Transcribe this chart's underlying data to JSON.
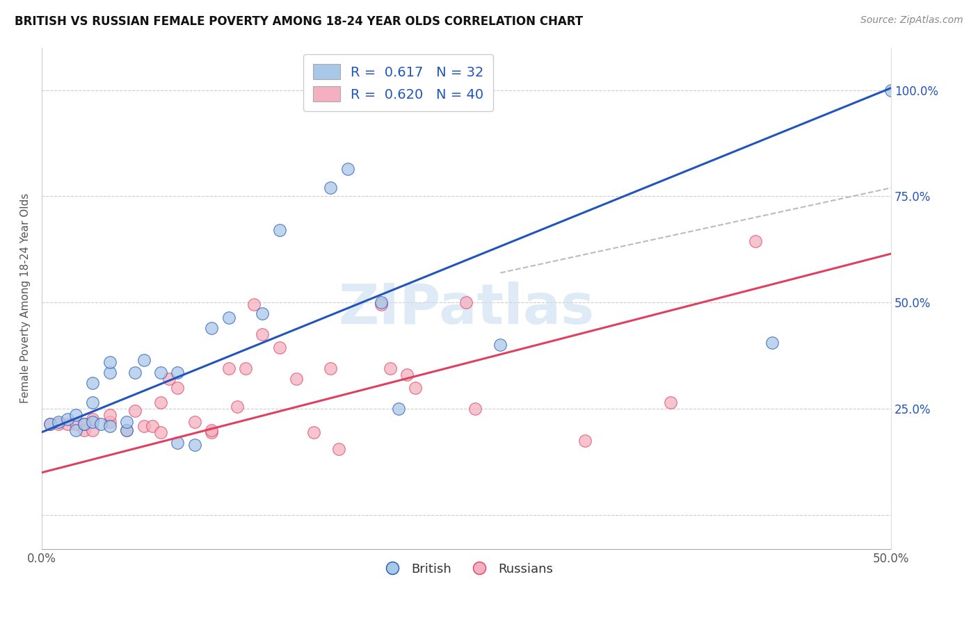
{
  "title": "BRITISH VS RUSSIAN FEMALE POVERTY AMONG 18-24 YEAR OLDS CORRELATION CHART",
  "source": "Source: ZipAtlas.com",
  "ylabel": "Female Poverty Among 18-24 Year Olds",
  "xlim": [
    0.0,
    0.5
  ],
  "ylim": [
    -0.08,
    1.1
  ],
  "xtick_pos": [
    0.0,
    0.1,
    0.2,
    0.3,
    0.4,
    0.5
  ],
  "xtick_labels": [
    "0.0%",
    "",
    "",
    "",
    "",
    "50.0%"
  ],
  "ytick_positions": [
    0.0,
    0.25,
    0.5,
    0.75,
    1.0
  ],
  "ytick_labels": [
    "",
    "25.0%",
    "50.0%",
    "75.0%",
    "100.0%"
  ],
  "british_color": "#a8c8e8",
  "russian_color": "#f4b0c0",
  "british_line_color": "#2255bb",
  "russian_line_color": "#e04060",
  "watermark_color": "#c8dff0",
  "british_R": "0.617",
  "british_N": "32",
  "russian_R": "0.620",
  "russian_N": "40",
  "british_scatter_x": [
    0.005,
    0.01,
    0.015,
    0.02,
    0.02,
    0.025,
    0.03,
    0.03,
    0.03,
    0.035,
    0.04,
    0.04,
    0.04,
    0.05,
    0.05,
    0.055,
    0.06,
    0.07,
    0.08,
    0.08,
    0.09,
    0.1,
    0.11,
    0.13,
    0.14,
    0.17,
    0.18,
    0.2,
    0.21,
    0.27,
    0.43,
    0.5
  ],
  "british_scatter_y": [
    0.215,
    0.22,
    0.225,
    0.235,
    0.2,
    0.215,
    0.22,
    0.265,
    0.31,
    0.215,
    0.21,
    0.335,
    0.36,
    0.2,
    0.22,
    0.335,
    0.365,
    0.335,
    0.335,
    0.17,
    0.165,
    0.44,
    0.465,
    0.475,
    0.67,
    0.77,
    0.815,
    0.5,
    0.25,
    0.4,
    0.405,
    1.0
  ],
  "russian_scatter_x": [
    0.005,
    0.01,
    0.015,
    0.02,
    0.025,
    0.025,
    0.03,
    0.03,
    0.04,
    0.04,
    0.05,
    0.055,
    0.06,
    0.065,
    0.07,
    0.07,
    0.075,
    0.08,
    0.09,
    0.1,
    0.1,
    0.11,
    0.115,
    0.12,
    0.125,
    0.13,
    0.14,
    0.15,
    0.16,
    0.17,
    0.175,
    0.2,
    0.205,
    0.215,
    0.22,
    0.25,
    0.255,
    0.32,
    0.37,
    0.42
  ],
  "russian_scatter_y": [
    0.215,
    0.215,
    0.215,
    0.215,
    0.2,
    0.215,
    0.2,
    0.225,
    0.22,
    0.235,
    0.2,
    0.245,
    0.21,
    0.21,
    0.195,
    0.265,
    0.32,
    0.3,
    0.22,
    0.195,
    0.2,
    0.345,
    0.255,
    0.345,
    0.495,
    0.425,
    0.395,
    0.32,
    0.195,
    0.345,
    0.155,
    0.495,
    0.345,
    0.33,
    0.3,
    0.5,
    0.25,
    0.175,
    0.265,
    0.645
  ],
  "british_line_x": [
    0.0,
    0.5
  ],
  "british_line_y": [
    0.195,
    1.005
  ],
  "russian_line_x": [
    0.0,
    0.5
  ],
  "russian_line_y": [
    0.1,
    0.615
  ],
  "dash_line_x": [
    0.27,
    0.5
  ],
  "dash_line_y": [
    0.57,
    0.77
  ]
}
